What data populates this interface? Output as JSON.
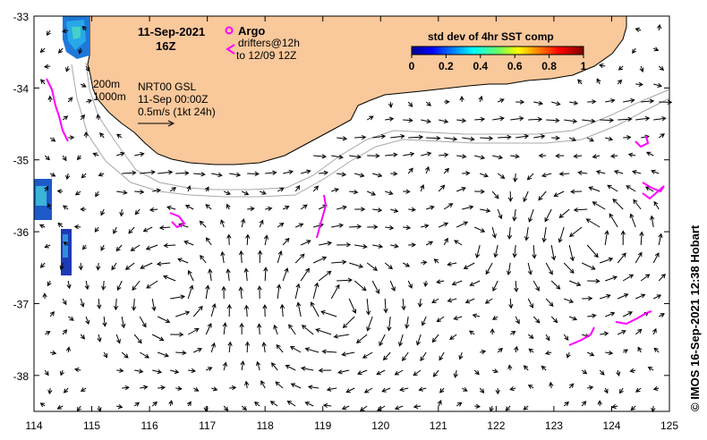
{
  "map": {
    "title_date": "11-Sep-2021",
    "title_time": "16Z",
    "argo_label": "Argo",
    "drifters_label": "drifters@12h",
    "drifters_range": "to 12/09 12Z",
    "isobath_200": "200m",
    "isobath_1000": "1000m",
    "product": "NRT00 GSL",
    "product_time": "11-Sep 00:00Z",
    "scale_label": "0.5m/s (1kt 24h)",
    "colorbar_title": "std dev of 4hr SST comp",
    "colorbar_ticks": [
      "0",
      "0.2",
      "0.4",
      "0.6",
      "0.8",
      "1"
    ],
    "credit": "© IMOS 16-Sep-2021 12:38 Hobart",
    "x_ticks": [
      "114",
      "115",
      "116",
      "117",
      "118",
      "119",
      "120",
      "121",
      "122",
      "123",
      "124",
      "125"
    ],
    "y_ticks": [
      "-33",
      "-34",
      "-35",
      "-36",
      "-37",
      "-38"
    ],
    "lon_range": [
      114,
      125
    ],
    "lat_range": [
      -38.5,
      -33
    ],
    "colors": {
      "land": "#f9c89b",
      "coast": "#000000",
      "isobath": "#a8a8a8",
      "drifter": "#ff00ff",
      "sst_low": "#1e3ab4",
      "sst_high": "#7a0000"
    }
  }
}
